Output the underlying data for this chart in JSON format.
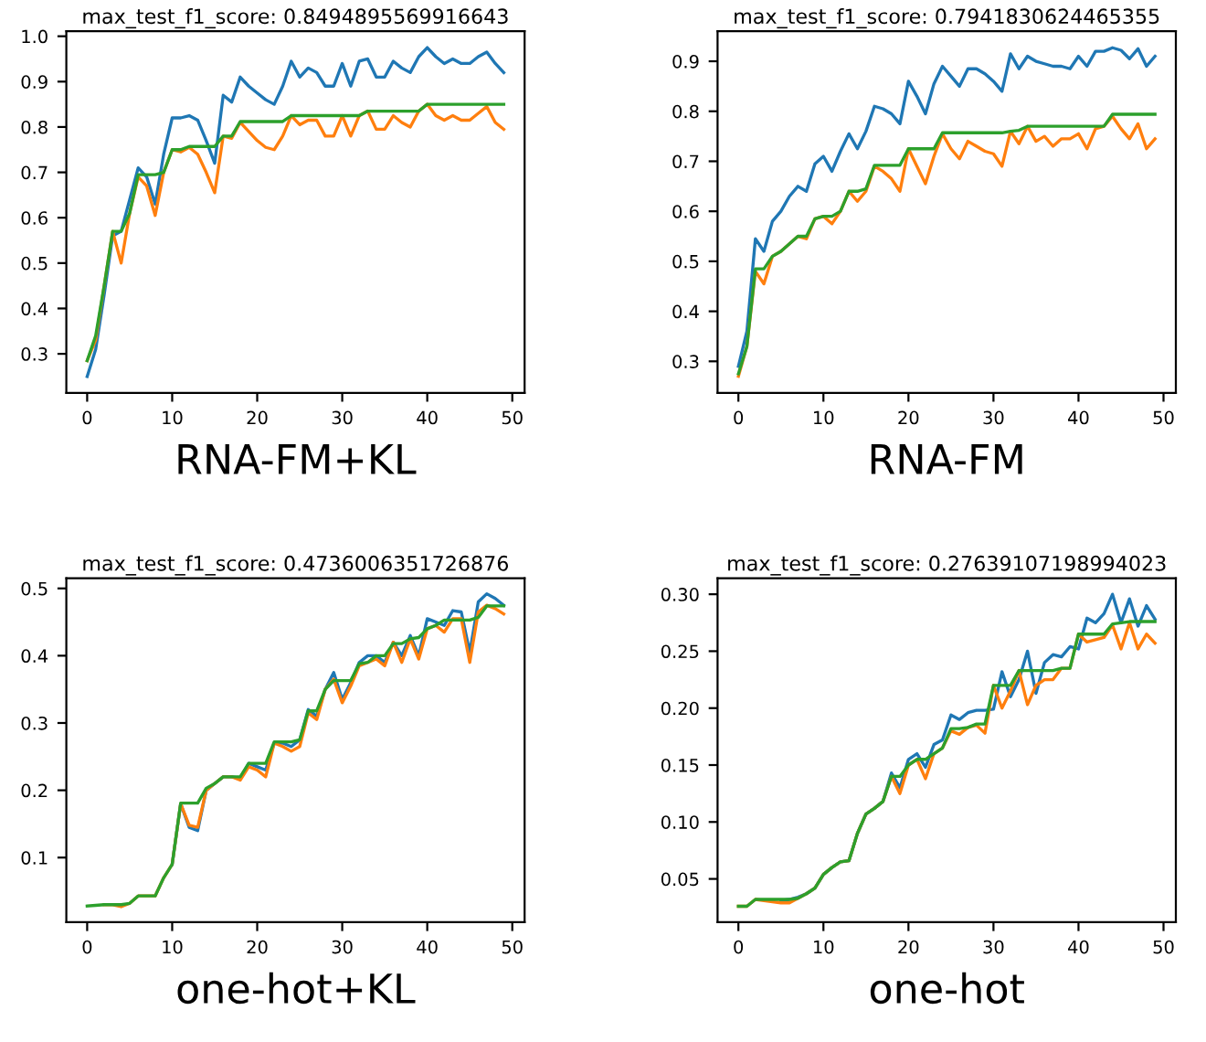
{
  "chart_data": [
    {
      "type": "line",
      "title": "max_test_f1_score: 0.8494895569916643",
      "xlabel": "RNA-FM+KL",
      "xlim": [
        -2.45,
        51.45
      ],
      "xticks": [
        0,
        10,
        20,
        30,
        40,
        50
      ],
      "ylim": [
        0.214,
        1.011
      ],
      "yticks": [
        0.3,
        0.4,
        0.5,
        0.6,
        0.7,
        0.8,
        0.9,
        {
          "value": 1.0,
          "label": "1.0"
        }
      ],
      "grid": false,
      "x": [
        0,
        1,
        2,
        3,
        4,
        5,
        6,
        7,
        8,
        9,
        10,
        11,
        12,
        13,
        14,
        15,
        16,
        17,
        18,
        19,
        20,
        21,
        22,
        23,
        24,
        25,
        26,
        27,
        28,
        29,
        30,
        31,
        32,
        33,
        34,
        35,
        36,
        37,
        38,
        39,
        40,
        41,
        42,
        43,
        44,
        45,
        46,
        47,
        48,
        49
      ],
      "series": [
        {
          "color": "#1f77b4",
          "values": [
            0.25,
            0.31,
            0.43,
            0.56,
            0.57,
            0.64,
            0.71,
            0.69,
            0.63,
            0.74,
            0.82,
            0.82,
            0.825,
            0.815,
            0.77,
            0.72,
            0.87,
            0.855,
            0.91,
            0.89,
            0.875,
            0.86,
            0.85,
            0.89,
            0.945,
            0.91,
            0.93,
            0.92,
            0.89,
            0.89,
            0.94,
            0.89,
            0.945,
            0.95,
            0.91,
            0.91,
            0.945,
            0.93,
            0.92,
            0.955,
            0.975,
            0.955,
            0.94,
            0.95,
            0.94,
            0.94,
            0.955,
            0.965,
            0.94,
            0.92
          ]
        },
        {
          "color": "#ff7f0e",
          "values": [
            0.285,
            0.33,
            0.45,
            0.57,
            0.5,
            0.61,
            0.69,
            0.67,
            0.605,
            0.7,
            0.75,
            0.745,
            0.755,
            0.74,
            0.7,
            0.655,
            0.78,
            0.775,
            0.81,
            0.79,
            0.77,
            0.755,
            0.75,
            0.78,
            0.825,
            0.805,
            0.815,
            0.815,
            0.78,
            0.78,
            0.825,
            0.78,
            0.825,
            0.835,
            0.795,
            0.795,
            0.825,
            0.81,
            0.8,
            0.835,
            0.85,
            0.825,
            0.815,
            0.825,
            0.815,
            0.815,
            0.83,
            0.845,
            0.81,
            0.795
          ]
        },
        {
          "color": "#2ca02c",
          "values": [
            0.285,
            0.34,
            0.45,
            0.57,
            0.57,
            0.61,
            0.695,
            0.695,
            0.695,
            0.7,
            0.75,
            0.75,
            0.757,
            0.757,
            0.757,
            0.757,
            0.78,
            0.78,
            0.812,
            0.812,
            0.812,
            0.812,
            0.812,
            0.812,
            0.825,
            0.825,
            0.825,
            0.825,
            0.825,
            0.825,
            0.825,
            0.825,
            0.825,
            0.835,
            0.835,
            0.835,
            0.835,
            0.835,
            0.835,
            0.835,
            0.85,
            0.85,
            0.85,
            0.85,
            0.85,
            0.85,
            0.85,
            0.85,
            0.85,
            0.85
          ]
        }
      ]
    },
    {
      "type": "line",
      "title": "max_test_f1_score: 0.7941830624465355",
      "xlabel": "RNA-FM",
      "xlim": [
        -2.45,
        51.45
      ],
      "xticks": [
        0,
        10,
        20,
        30,
        40,
        50
      ],
      "ylim": [
        0.237,
        0.96
      ],
      "yticks": [
        0.3,
        0.4,
        0.5,
        0.6,
        0.7,
        0.8,
        0.9
      ],
      "grid": false,
      "x": [
        0,
        1,
        2,
        3,
        4,
        5,
        6,
        7,
        8,
        9,
        10,
        11,
        12,
        13,
        14,
        15,
        16,
        17,
        18,
        19,
        20,
        21,
        22,
        23,
        24,
        25,
        26,
        27,
        28,
        29,
        30,
        31,
        32,
        33,
        34,
        35,
        36,
        37,
        38,
        39,
        40,
        41,
        42,
        43,
        44,
        45,
        46,
        47,
        48,
        49
      ],
      "series": [
        {
          "color": "#1f77b4",
          "values": [
            0.29,
            0.36,
            0.545,
            0.52,
            0.58,
            0.6,
            0.63,
            0.65,
            0.64,
            0.695,
            0.71,
            0.68,
            0.72,
            0.755,
            0.725,
            0.76,
            0.81,
            0.805,
            0.795,
            0.775,
            0.86,
            0.83,
            0.795,
            0.855,
            0.89,
            0.87,
            0.85,
            0.885,
            0.885,
            0.875,
            0.86,
            0.84,
            0.915,
            0.885,
            0.91,
            0.9,
            0.895,
            0.89,
            0.89,
            0.885,
            0.91,
            0.89,
            0.92,
            0.92,
            0.927,
            0.922,
            0.905,
            0.925,
            0.89,
            0.91
          ]
        },
        {
          "color": "#ff7f0e",
          "values": [
            0.27,
            0.33,
            0.48,
            0.455,
            0.51,
            0.52,
            0.535,
            0.55,
            0.545,
            0.585,
            0.59,
            0.575,
            0.6,
            0.64,
            0.62,
            0.64,
            0.69,
            0.68,
            0.665,
            0.64,
            0.725,
            0.69,
            0.655,
            0.71,
            0.755,
            0.725,
            0.705,
            0.74,
            0.73,
            0.72,
            0.715,
            0.69,
            0.76,
            0.735,
            0.77,
            0.74,
            0.75,
            0.73,
            0.745,
            0.745,
            0.755,
            0.725,
            0.765,
            0.77,
            0.79,
            0.765,
            0.745,
            0.775,
            0.725,
            0.745
          ]
        },
        {
          "color": "#2ca02c",
          "values": [
            0.275,
            0.33,
            0.485,
            0.485,
            0.51,
            0.52,
            0.535,
            0.55,
            0.55,
            0.585,
            0.59,
            0.59,
            0.6,
            0.64,
            0.64,
            0.645,
            0.692,
            0.692,
            0.692,
            0.692,
            0.725,
            0.725,
            0.725,
            0.725,
            0.757,
            0.757,
            0.757,
            0.757,
            0.757,
            0.757,
            0.757,
            0.757,
            0.76,
            0.762,
            0.77,
            0.77,
            0.77,
            0.77,
            0.77,
            0.77,
            0.77,
            0.77,
            0.77,
            0.77,
            0.794,
            0.794,
            0.794,
            0.794,
            0.794,
            0.794
          ]
        }
      ]
    },
    {
      "type": "line",
      "title": "max_test_f1_score: 0.4736006351726876",
      "xlabel": "one-hot+KL",
      "xlim": [
        -2.45,
        51.45
      ],
      "xticks": [
        0,
        10,
        20,
        30,
        40,
        50
      ],
      "ylim": [
        0.004,
        0.515
      ],
      "yticks": [
        0.1,
        0.2,
        0.3,
        0.4,
        0.5
      ],
      "grid": false,
      "x": [
        0,
        1,
        2,
        3,
        4,
        5,
        6,
        7,
        8,
        9,
        10,
        11,
        12,
        13,
        14,
        15,
        16,
        17,
        18,
        19,
        20,
        21,
        22,
        23,
        24,
        25,
        26,
        27,
        28,
        29,
        30,
        31,
        32,
        33,
        34,
        35,
        36,
        37,
        38,
        39,
        40,
        41,
        42,
        43,
        44,
        45,
        46,
        47,
        48,
        49
      ],
      "series": [
        {
          "color": "#1f77b4",
          "values": [
            null,
            null,
            null,
            null,
            null,
            null,
            null,
            null,
            null,
            null,
            0.09,
            0.18,
            0.145,
            0.14,
            0.2,
            0.21,
            0.22,
            0.22,
            0.218,
            0.24,
            0.235,
            0.23,
            0.27,
            0.27,
            0.265,
            0.275,
            0.32,
            0.31,
            0.35,
            0.375,
            0.335,
            0.36,
            0.39,
            0.4,
            0.4,
            0.39,
            0.42,
            0.4,
            0.43,
            0.4,
            0.455,
            0.45,
            0.445,
            0.467,
            0.465,
            0.405,
            0.48,
            0.492,
            0.485,
            0.475
          ]
        },
        {
          "color": "#ff7f0e",
          "values": [
            null,
            null,
            0.03,
            0.03,
            0.027,
            0.032,
            0.043,
            0.043,
            0.043,
            0.07,
            0.09,
            0.18,
            0.148,
            0.145,
            0.2,
            0.21,
            0.22,
            0.22,
            0.215,
            0.235,
            0.23,
            0.22,
            0.27,
            0.265,
            0.258,
            0.265,
            0.315,
            0.305,
            0.35,
            0.365,
            0.33,
            0.355,
            0.385,
            0.39,
            0.395,
            0.385,
            0.42,
            0.39,
            0.425,
            0.395,
            0.44,
            0.445,
            0.435,
            0.455,
            0.455,
            0.39,
            0.465,
            0.475,
            0.47,
            0.462
          ]
        },
        {
          "color": "#2ca02c",
          "values": [
            0.028,
            0.029,
            0.03,
            0.03,
            0.03,
            0.032,
            0.043,
            0.043,
            0.043,
            0.07,
            0.09,
            0.181,
            0.181,
            0.181,
            0.203,
            0.21,
            0.22,
            0.22,
            0.22,
            0.24,
            0.24,
            0.24,
            0.272,
            0.272,
            0.272,
            0.275,
            0.318,
            0.318,
            0.35,
            0.363,
            0.363,
            0.363,
            0.388,
            0.39,
            0.4,
            0.4,
            0.418,
            0.418,
            0.425,
            0.427,
            0.44,
            0.445,
            0.453,
            0.453,
            0.453,
            0.453,
            0.457,
            0.474,
            0.474,
            0.474
          ]
        }
      ]
    },
    {
      "type": "line",
      "title": "max_test_f1_score: 0.27639107198994023",
      "xlabel": "one-hot",
      "xlim": [
        -2.45,
        51.45
      ],
      "xticks": [
        0,
        10,
        20,
        30,
        40,
        50
      ],
      "ylim": [
        0.012,
        0.314
      ],
      "yticks": [
        {
          "value": 0.05,
          "label": "0.05"
        },
        {
          "value": 0.1,
          "label": "0.10"
        },
        {
          "value": 0.15,
          "label": "0.15"
        },
        {
          "value": 0.2,
          "label": "0.20"
        },
        {
          "value": 0.25,
          "label": "0.25"
        },
        {
          "value": 0.3,
          "label": "0.30"
        }
      ],
      "grid": false,
      "x": [
        0,
        1,
        2,
        3,
        4,
        5,
        6,
        7,
        8,
        9,
        10,
        11,
        12,
        13,
        14,
        15,
        16,
        17,
        18,
        19,
        20,
        21,
        22,
        23,
        24,
        25,
        26,
        27,
        28,
        29,
        30,
        31,
        32,
        33,
        34,
        35,
        36,
        37,
        38,
        39,
        40,
        41,
        42,
        43,
        44,
        45,
        46,
        47,
        48,
        49
      ],
      "series": [
        {
          "color": "#1f77b4",
          "values": [
            null,
            null,
            null,
            null,
            null,
            0.031,
            0.032,
            0.034,
            0.037,
            0.042,
            0.054,
            0.06,
            0.065,
            0.066,
            0.09,
            0.107,
            0.112,
            0.118,
            0.143,
            0.13,
            0.155,
            0.16,
            0.148,
            0.168,
            0.172,
            0.194,
            0.19,
            0.196,
            0.198,
            0.198,
            0.199,
            0.232,
            0.21,
            0.225,
            0.25,
            0.213,
            0.24,
            0.247,
            0.245,
            0.254,
            0.252,
            0.279,
            0.275,
            0.283,
            0.3,
            0.275,
            0.296,
            0.272,
            0.29,
            0.278
          ]
        },
        {
          "color": "#ff7f0e",
          "values": [
            0.026,
            0.026,
            0.032,
            0.031,
            0.03,
            0.029,
            0.029,
            0.033,
            0.037,
            0.042,
            0.054,
            0.06,
            0.065,
            0.066,
            0.09,
            0.107,
            0.112,
            0.118,
            0.14,
            0.125,
            0.15,
            0.155,
            0.138,
            0.16,
            0.165,
            0.18,
            0.177,
            0.183,
            0.185,
            0.178,
            0.22,
            0.2,
            0.215,
            0.233,
            0.203,
            0.22,
            0.225,
            0.225,
            0.235,
            0.235,
            0.265,
            0.258,
            0.26,
            0.262,
            0.273,
            0.252,
            0.275,
            0.252,
            0.265,
            0.257
          ]
        },
        {
          "color": "#2ca02c",
          "values": [
            0.026,
            0.026,
            0.032,
            0.032,
            0.032,
            0.032,
            0.032,
            0.033,
            0.037,
            0.042,
            0.054,
            0.06,
            0.065,
            0.066,
            0.09,
            0.107,
            0.112,
            0.118,
            0.14,
            0.14,
            0.15,
            0.155,
            0.155,
            0.16,
            0.165,
            0.182,
            0.182,
            0.183,
            0.186,
            0.186,
            0.22,
            0.22,
            0.22,
            0.233,
            0.233,
            0.233,
            0.233,
            0.233,
            0.235,
            0.235,
            0.265,
            0.265,
            0.265,
            0.265,
            0.274,
            0.275,
            0.276,
            0.276,
            0.276,
            0.276
          ]
        }
      ]
    }
  ]
}
